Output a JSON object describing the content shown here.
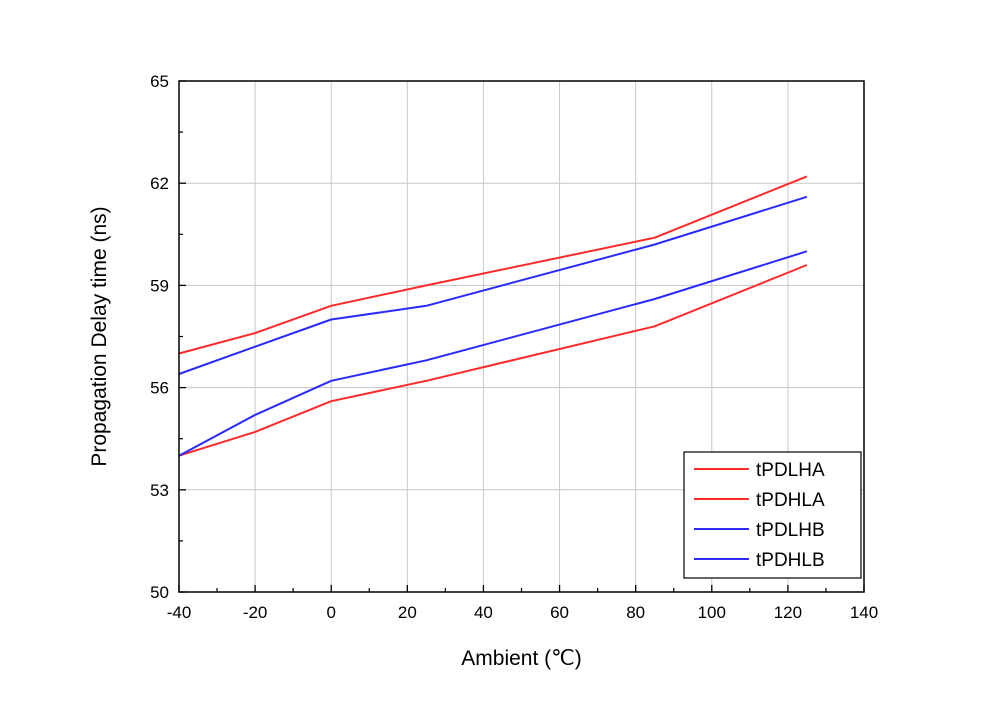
{
  "chart_data": {
    "type": "line",
    "title": "",
    "xlabel": "Ambient (℃)",
    "ylabel": "Propagation Delay time (ns)",
    "xlim": [
      -40,
      140
    ],
    "ylim": [
      50,
      65
    ],
    "xticks": [
      -40,
      -20,
      0,
      20,
      40,
      60,
      80,
      100,
      120,
      140
    ],
    "yticks": [
      50,
      53,
      56,
      59,
      62,
      65
    ],
    "grid": true,
    "legend_position": "bottom-right",
    "series": [
      {
        "name": "tPDLHA",
        "color": "#ff2a2a",
        "x": [
          -40,
          -20,
          0,
          25,
          85,
          125
        ],
        "y": [
          57.0,
          57.6,
          58.4,
          59.0,
          60.4,
          62.2
        ]
      },
      {
        "name": "tPDHLA",
        "color": "#ff2a2a",
        "x": [
          -40,
          -20,
          0,
          25,
          85,
          125
        ],
        "y": [
          54.0,
          54.7,
          55.6,
          56.2,
          57.8,
          59.6
        ]
      },
      {
        "name": "tPDLHB",
        "color": "#2a2aff",
        "x": [
          -40,
          -20,
          0,
          25,
          85,
          125
        ],
        "y": [
          56.4,
          57.2,
          58.0,
          58.4,
          60.2,
          61.6
        ]
      },
      {
        "name": "tPDHLB",
        "color": "#2a2aff",
        "x": [
          -40,
          -20,
          0,
          25,
          85,
          125
        ],
        "y": [
          54.0,
          55.2,
          56.2,
          56.8,
          58.6,
          60.0
        ]
      }
    ]
  }
}
